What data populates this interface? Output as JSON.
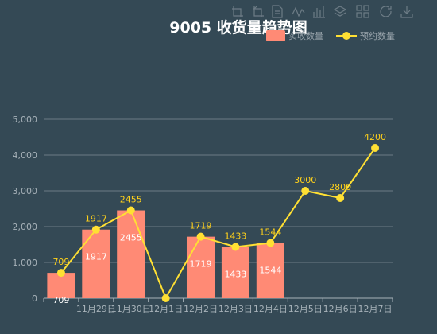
{
  "chart_data": {
    "type": "bar",
    "title": "9005 收货量趋势图",
    "categories": [
      "",
      "11月29日",
      "11月30日",
      "12月1日",
      "12月2日",
      "12月3日",
      "12月4日",
      "12月5日",
      "12月6日",
      "12月7日"
    ],
    "ylim": [
      0,
      5000
    ],
    "yticks": [
      "0",
      "1,000",
      "2,000",
      "3,000",
      "4,000",
      "5,000"
    ],
    "grid": true,
    "legend_position": "top-right",
    "series": [
      {
        "name": "实收数量",
        "type": "bar",
        "color": "#ff8a75",
        "values": [
          709,
          1917,
          2455,
          null,
          1719,
          1433,
          1544,
          null,
          null,
          null
        ],
        "labels": [
          "709",
          "1917",
          "2455",
          "",
          "1719",
          "1433",
          "1544",
          "",
          "",
          ""
        ]
      },
      {
        "name": "预约数量",
        "type": "line",
        "color": "#ffe033",
        "values": [
          709,
          1917,
          2455,
          0,
          1719,
          1433,
          1544,
          3000,
          2800,
          4200
        ],
        "labels": [
          "709",
          "1917",
          "2455",
          "",
          "1719",
          "1433",
          "1544",
          "3000",
          "2800",
          "4200"
        ]
      }
    ]
  },
  "toolbox": [
    "zoom-icon",
    "zoom-reset-icon",
    "data-view-icon",
    "line-type-icon",
    "bar-type-icon",
    "stack-icon",
    "tiled-icon",
    "restore-icon",
    "save-image-icon"
  ]
}
